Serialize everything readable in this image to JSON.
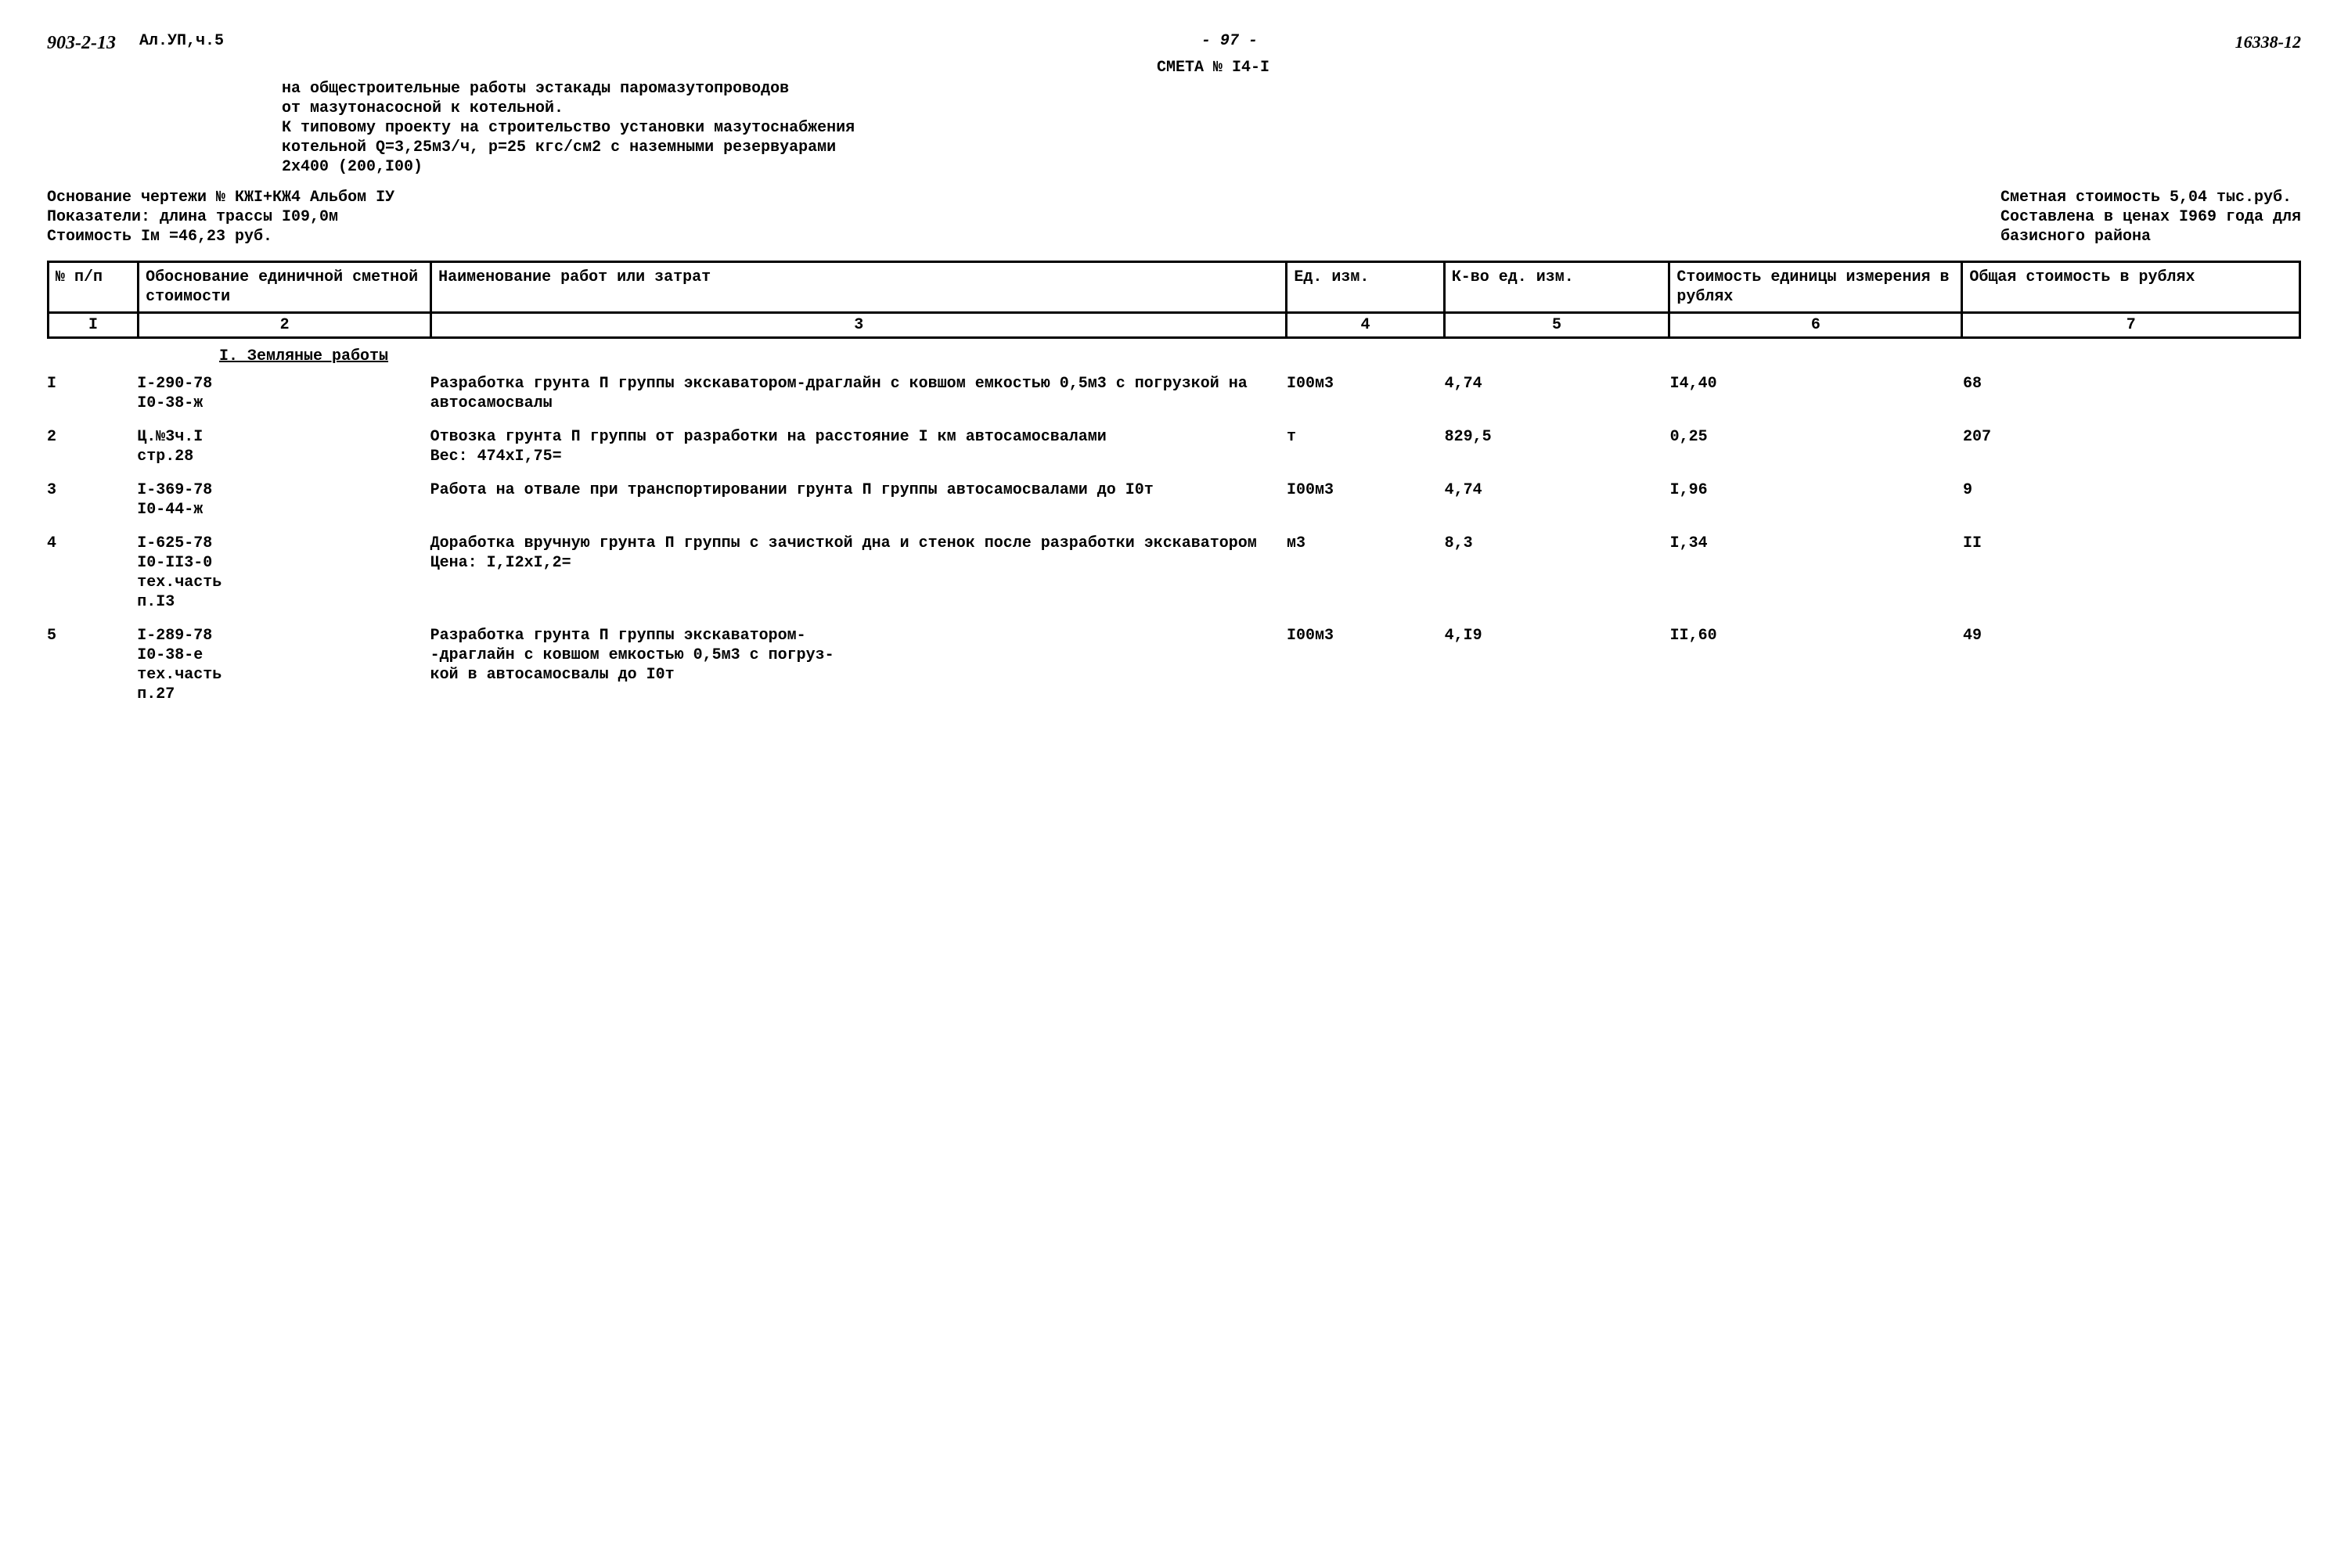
{
  "header": {
    "doc_code": "903-2-13",
    "album": "Ал.УП,ч.5",
    "page_number": "- 97 -",
    "ref_number": "16338-12",
    "smeta_title": "СМЕТА № I4-I",
    "desc_line1": "на общестроительные работы эстакады паромазутопроводов",
    "desc_line2": "от мазутонасосной к котельной.",
    "desc_line3": "К типовому проекту на строительство установки мазутоснабжения",
    "desc_line4": "котельной Q=3,25м3/ч, р=25 кгс/см2 с наземными резервуарами",
    "desc_line5": "2х400 (200,I00)"
  },
  "meta": {
    "left_line1": "Основание чертежи № КЖI+КЖ4      Альбом IУ",
    "left_line2": "Показатели: длина трассы I09,0м",
    "left_line3": "Стоимость Iм =46,23 руб.",
    "right_line1": "Сметная стоимость 5,04 тыс.руб.",
    "right_line2": "Составлена в ценах I969 года для",
    "right_line3": "базисного района"
  },
  "table": {
    "col_widths_pct": [
      4,
      13,
      38,
      7,
      10,
      13,
      15
    ],
    "headers": {
      "c1": "№ п/п",
      "c2": "Обоснование единичной сметной стоимости",
      "c3": "Наименование работ или затрат",
      "c4": "Ед. изм.",
      "c5": "К-во ед. изм.",
      "c6": "Стоимость единицы измерения в рублях",
      "c7": "Общая стоимость в рублях"
    },
    "num_row": {
      "c1": "I",
      "c2": "2",
      "c3": "3",
      "c4": "4",
      "c5": "5",
      "c6": "6",
      "c7": "7"
    }
  },
  "section_title": "I. Земляные работы",
  "rows": [
    {
      "n": "I",
      "osn": "I-290-78\nI0-38-ж",
      "name": "Разработка грунта П группы экскаватором-драглайн с ковшом емкостью 0,5м3 с погрузкой на автосамосвалы",
      "ed": "I00м3",
      "qty": "4,74",
      "cost": "I4,40",
      "total": "68"
    },
    {
      "n": "2",
      "osn": "Ц.№3ч.I\nстр.28",
      "name": "Отвозка грунта П группы от разработки на расстояние I км автосамосвалами\nВес: 474хI,75=",
      "ed": "т",
      "qty": "829,5",
      "cost": "0,25",
      "total": "207"
    },
    {
      "n": "3",
      "osn": "I-369-78\nI0-44-ж",
      "name": "Работа на отвале при транспортировании грунта П группы автосамосвалами до I0т",
      "ed": "I00м3",
      "qty": "4,74",
      "cost": "I,96",
      "total": "9"
    },
    {
      "n": "4",
      "osn": "I-625-78\nI0-II3-0\nтех.часть\nп.I3",
      "name": "Доработка вручную грунта П группы с зачисткой дна и стенок после разработки экскаватором\n        Цена: I,I2хI,2=",
      "ed": "м3",
      "qty": "8,3",
      "cost": "I,34",
      "total": "II"
    },
    {
      "n": "5",
      "osn": "I-289-78\nI0-38-е\nтех.часть\n  п.27",
      "name": "Разработка грунта П группы экскаватором-\n-драглайн с ковшом емкостью 0,5м3 с погруз-\nкой в автосамосвалы до I0т",
      "ed": "I00м3",
      "qty": "4,I9",
      "cost": "II,60",
      "total": "49"
    }
  ]
}
